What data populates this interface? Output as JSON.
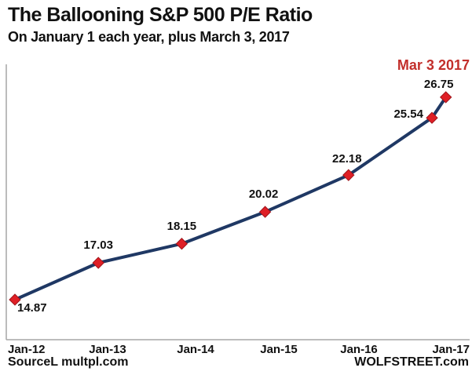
{
  "header": {
    "title": "The Ballooning S&P 500 P/E Ratio",
    "subtitle": "On January 1 each year, plus March 3, 2017"
  },
  "chart_data": {
    "type": "line",
    "title": "The Ballooning S&P 500 P/E Ratio",
    "subtitle": "On January 1 each year, plus March 3, 2017",
    "x_tick_labels": [
      "Jan-12",
      "Jan-13",
      "Jan-14",
      "Jan-15",
      "Jan-16",
      "Jan-17"
    ],
    "points": [
      {
        "date": "Jan-12",
        "month_offset": 0,
        "value": 14.87,
        "value_label": "14.87"
      },
      {
        "date": "Jan-13",
        "month_offset": 12,
        "value": 17.03,
        "value_label": "17.03"
      },
      {
        "date": "Jan-14",
        "month_offset": 24,
        "value": 18.15,
        "value_label": "18.15"
      },
      {
        "date": "Jan-15",
        "month_offset": 36,
        "value": 20.02,
        "value_label": "20.02"
      },
      {
        "date": "Jan-16",
        "month_offset": 48,
        "value": 22.18,
        "value_label": "22.18"
      },
      {
        "date": "Jan-17",
        "month_offset": 60,
        "value": 25.54,
        "value_label": "25.54"
      },
      {
        "date": "Mar 3 2017",
        "month_offset": 62,
        "value": 26.75,
        "value_label": "26.75"
      }
    ],
    "annotation": {
      "text": "Mar 3 2017",
      "color": "#C22F2B"
    },
    "ylim": [
      12.5,
      28.7
    ],
    "grid": false,
    "legend": "none",
    "marker_shape": "diamond",
    "colors": {
      "line": "#1F3864",
      "marker": "#DF1F26",
      "marker_edge": "#9E151B",
      "axis": "#A6A6A6",
      "text": "#111111"
    }
  },
  "footer": {
    "source": "SourceL multpl.com",
    "credit": "WOLFSTREET.com"
  }
}
